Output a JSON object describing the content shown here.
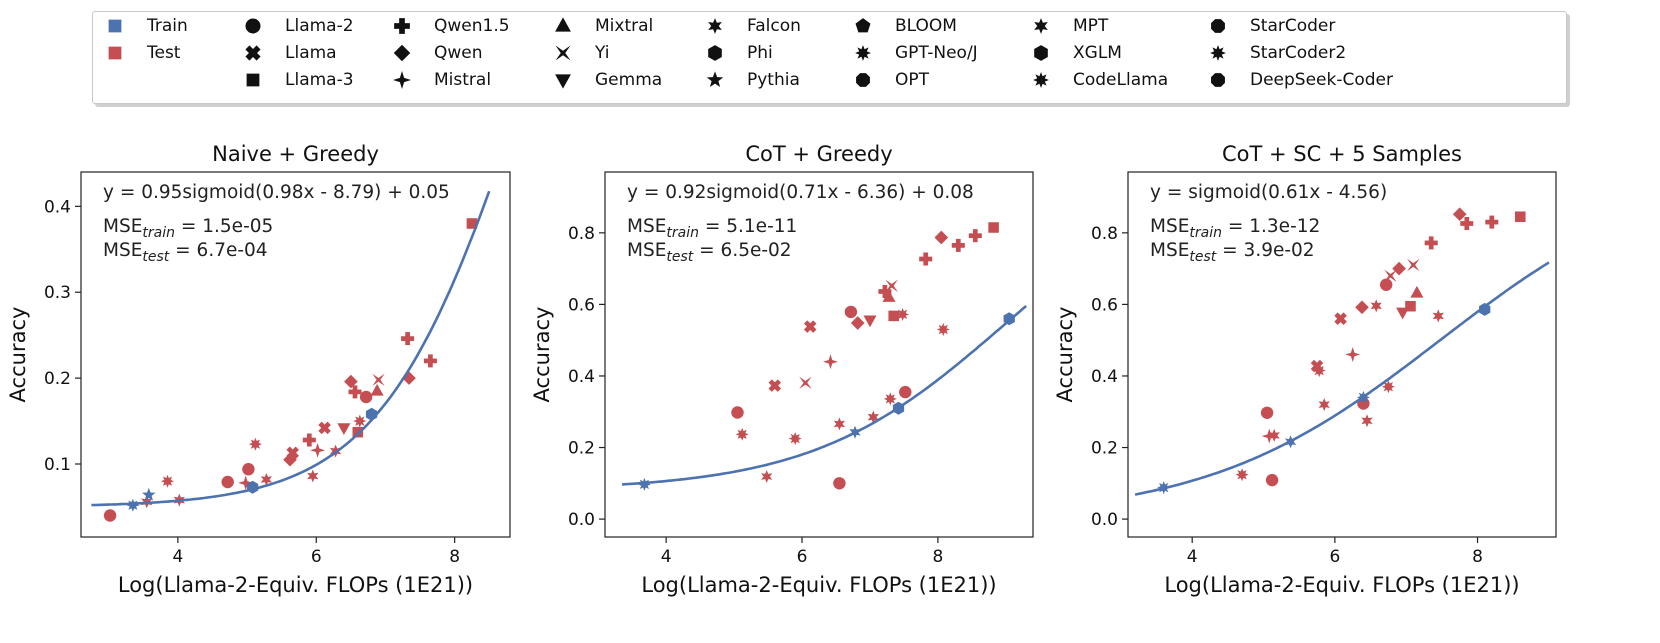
{
  "legend": {
    "columns": [
      [
        {
          "label": "Train",
          "marker": "square",
          "color": "#4c72b0"
        },
        {
          "label": "Test",
          "marker": "square",
          "color": "#c44e52"
        }
      ],
      [
        {
          "label": "Llama-2",
          "marker": "circle"
        },
        {
          "label": "Llama",
          "marker": "x"
        },
        {
          "label": "Llama-3",
          "marker": "square"
        }
      ],
      [
        {
          "label": "Qwen1.5",
          "marker": "plus"
        },
        {
          "label": "Qwen",
          "marker": "diamond"
        },
        {
          "label": "Mistral",
          "marker": "star4"
        }
      ],
      [
        {
          "label": "Mixtral",
          "marker": "triangle-up"
        },
        {
          "label": "Yi",
          "marker": "bowtie"
        },
        {
          "label": "Gemma",
          "marker": "triangle-down"
        }
      ],
      [
        {
          "label": "Falcon",
          "marker": "star6"
        },
        {
          "label": "Phi",
          "marker": "hexagon"
        },
        {
          "label": "Pythia",
          "marker": "star5"
        }
      ],
      [
        {
          "label": "BLOOM",
          "marker": "pentagon"
        },
        {
          "label": "GPT-Neo/J",
          "marker": "star8"
        },
        {
          "label": "OPT",
          "marker": "octagon"
        }
      ],
      [
        {
          "label": "MPT",
          "marker": "star6"
        },
        {
          "label": "XGLM",
          "marker": "hexagon"
        },
        {
          "label": "CodeLlama",
          "marker": "star8"
        }
      ],
      [
        {
          "label": "StarCoder",
          "marker": "octagon"
        },
        {
          "label": "StarCoder2",
          "marker": "star8"
        },
        {
          "label": "DeepSeek-Coder",
          "marker": "octagon"
        }
      ]
    ]
  },
  "colors": {
    "train": "#4c72b0",
    "test": "#c44e52",
    "marker_default": "#111111"
  },
  "chart_data": [
    {
      "type": "scatter",
      "title": "Naive + Greedy",
      "xlabel": "Log(Llama-2-Equiv. FLOPs (1E21))",
      "ylabel": "Accuracy",
      "xlim": [
        2.6,
        8.8
      ],
      "ylim": [
        0.015,
        0.44
      ],
      "xticks": [
        4,
        6,
        8
      ],
      "yticks": [
        0.1,
        0.2,
        0.3,
        0.4
      ],
      "xtick_labels": [
        "4",
        "6",
        "8"
      ],
      "ytick_labels": [
        "0.1",
        "0.2",
        "0.3",
        "0.4"
      ],
      "equation": "y = 0.95sigmoid(0.98x - 8.79) + 0.05",
      "mse_train": {
        "prefix": "MSE",
        "sub": "train",
        "value": " = 1.5e-05"
      },
      "mse_test": {
        "prefix": "MSE",
        "sub": "test",
        "value": " = 6.7e-04"
      },
      "fit": {
        "a": 0.95,
        "k": 0.98,
        "b": -8.79,
        "c": 0.05,
        "x_range": [
          2.75,
          8.5
        ]
      },
      "train_points": [
        {
          "x": 3.35,
          "y": 0.052,
          "m": "star8"
        },
        {
          "x": 3.58,
          "y": 0.064,
          "m": "star5"
        },
        {
          "x": 5.08,
          "y": 0.073,
          "m": "hexagon"
        },
        {
          "x": 6.8,
          "y": 0.158,
          "m": "hexagon"
        }
      ],
      "test_points": [
        {
          "x": 3.02,
          "y": 0.04,
          "m": "circle"
        },
        {
          "x": 3.55,
          "y": 0.056,
          "m": "star6"
        },
        {
          "x": 3.85,
          "y": 0.08,
          "m": "star8"
        },
        {
          "x": 4.02,
          "y": 0.058,
          "m": "star6"
        },
        {
          "x": 4.72,
          "y": 0.079,
          "m": "circle"
        },
        {
          "x": 4.98,
          "y": 0.078,
          "m": "star4"
        },
        {
          "x": 5.02,
          "y": 0.094,
          "m": "circle"
        },
        {
          "x": 5.12,
          "y": 0.123,
          "m": "star8"
        },
        {
          "x": 5.28,
          "y": 0.082,
          "m": "star6"
        },
        {
          "x": 5.62,
          "y": 0.105,
          "m": "diamond"
        },
        {
          "x": 5.66,
          "y": 0.113,
          "m": "x"
        },
        {
          "x": 5.9,
          "y": 0.128,
          "m": "plus"
        },
        {
          "x": 5.95,
          "y": 0.086,
          "m": "star6"
        },
        {
          "x": 6.02,
          "y": 0.116,
          "m": "star4"
        },
        {
          "x": 6.12,
          "y": 0.142,
          "m": "x"
        },
        {
          "x": 6.28,
          "y": 0.115,
          "m": "star6"
        },
        {
          "x": 6.4,
          "y": 0.142,
          "m": "triangle-down"
        },
        {
          "x": 6.5,
          "y": 0.196,
          "m": "diamond"
        },
        {
          "x": 6.56,
          "y": 0.184,
          "m": "plus"
        },
        {
          "x": 6.6,
          "y": 0.137,
          "m": "square"
        },
        {
          "x": 6.63,
          "y": 0.15,
          "m": "star8"
        },
        {
          "x": 6.72,
          "y": 0.178,
          "m": "circle"
        },
        {
          "x": 6.88,
          "y": 0.185,
          "m": "triangle-up"
        },
        {
          "x": 6.9,
          "y": 0.198,
          "m": "bowtie"
        },
        {
          "x": 7.32,
          "y": 0.246,
          "m": "plus"
        },
        {
          "x": 7.34,
          "y": 0.2,
          "m": "diamond"
        },
        {
          "x": 7.65,
          "y": 0.22,
          "m": "plus"
        },
        {
          "x": 8.25,
          "y": 0.38,
          "m": "square"
        }
      ]
    },
    {
      "type": "scatter",
      "title": "CoT + Greedy",
      "xlabel": "Log(Llama-2-Equiv. FLOPs (1E21))",
      "ylabel": "Accuracy",
      "xlim": [
        3.1,
        9.4
      ],
      "ylim": [
        -0.05,
        0.97
      ],
      "xticks": [
        4,
        6,
        8
      ],
      "yticks": [
        0,
        0.2,
        0.4,
        0.6,
        0.8
      ],
      "xtick_labels": [
        "4",
        "6",
        "8"
      ],
      "ytick_labels": [
        "0.0",
        "0.2",
        "0.4",
        "0.6",
        "0.8"
      ],
      "equation": "y = 0.92sigmoid(0.71x - 6.36) + 0.08",
      "mse_train": {
        "prefix": "MSE",
        "sub": "train",
        "value": " = 5.1e-11"
      },
      "mse_test": {
        "prefix": "MSE",
        "sub": "test",
        "value": " = 6.5e-02"
      },
      "fit": {
        "a": 0.92,
        "k": 0.71,
        "b": -6.36,
        "c": 0.08,
        "x_range": [
          3.35,
          9.3
        ]
      },
      "train_points": [
        {
          "x": 3.68,
          "y": 0.097,
          "m": "star8"
        },
        {
          "x": 6.78,
          "y": 0.243,
          "m": "star6"
        },
        {
          "x": 7.42,
          "y": 0.31,
          "m": "hexagon"
        },
        {
          "x": 9.05,
          "y": 0.56,
          "m": "hexagon"
        }
      ],
      "test_points": [
        {
          "x": 5.05,
          "y": 0.298,
          "m": "circle"
        },
        {
          "x": 5.12,
          "y": 0.237,
          "m": "star8"
        },
        {
          "x": 5.48,
          "y": 0.119,
          "m": "star6"
        },
        {
          "x": 5.6,
          "y": 0.373,
          "m": "x"
        },
        {
          "x": 5.9,
          "y": 0.225,
          "m": "star8"
        },
        {
          "x": 6.05,
          "y": 0.381,
          "m": "bowtie"
        },
        {
          "x": 6.12,
          "y": 0.538,
          "m": "x"
        },
        {
          "x": 6.42,
          "y": 0.44,
          "m": "star4"
        },
        {
          "x": 6.55,
          "y": 0.266,
          "m": "star6"
        },
        {
          "x": 6.55,
          "y": 0.1,
          "m": "circle"
        },
        {
          "x": 6.72,
          "y": 0.579,
          "m": "circle"
        },
        {
          "x": 6.82,
          "y": 0.548,
          "m": "diamond"
        },
        {
          "x": 7.0,
          "y": 0.556,
          "m": "triangle-down"
        },
        {
          "x": 7.05,
          "y": 0.285,
          "m": "star6"
        },
        {
          "x": 7.22,
          "y": 0.636,
          "m": "plus"
        },
        {
          "x": 7.28,
          "y": 0.62,
          "m": "triangle-up"
        },
        {
          "x": 7.3,
          "y": 0.336,
          "m": "star8"
        },
        {
          "x": 7.32,
          "y": 0.652,
          "m": "bowtie"
        },
        {
          "x": 7.35,
          "y": 0.568,
          "m": "square"
        },
        {
          "x": 7.48,
          "y": 0.572,
          "m": "star8"
        },
        {
          "x": 7.52,
          "y": 0.355,
          "m": "circle"
        },
        {
          "x": 7.82,
          "y": 0.727,
          "m": "plus"
        },
        {
          "x": 8.05,
          "y": 0.787,
          "m": "diamond"
        },
        {
          "x": 8.08,
          "y": 0.53,
          "m": "star8"
        },
        {
          "x": 8.3,
          "y": 0.765,
          "m": "plus"
        },
        {
          "x": 8.55,
          "y": 0.792,
          "m": "plus"
        },
        {
          "x": 8.82,
          "y": 0.815,
          "m": "square"
        }
      ]
    },
    {
      "type": "scatter",
      "title": "CoT + SC + 5 Samples",
      "xlabel": "Log(Llama-2-Equiv. FLOPs (1E21))",
      "ylabel": "Accuracy",
      "xlim": [
        3.1,
        9.1
      ],
      "ylim": [
        -0.05,
        0.97
      ],
      "xticks": [
        4,
        6,
        8
      ],
      "yticks": [
        0,
        0.2,
        0.4,
        0.6,
        0.8
      ],
      "xtick_labels": [
        "4",
        "6",
        "8"
      ],
      "ytick_labels": [
        "0.0",
        "0.2",
        "0.4",
        "0.6",
        "0.8"
      ],
      "equation": "y = sigmoid(0.61x - 4.56)",
      "mse_train": {
        "prefix": "MSE",
        "sub": "train",
        "value": " = 1.3e-12"
      },
      "mse_test": {
        "prefix": "MSE",
        "sub": "test",
        "value": " = 3.9e-02"
      },
      "fit": {
        "a": 1.0,
        "k": 0.61,
        "b": -4.56,
        "c": 0.0,
        "x_range": [
          3.2,
          9.0
        ]
      },
      "train_points": [
        {
          "x": 3.6,
          "y": 0.088,
          "m": "star8"
        },
        {
          "x": 5.38,
          "y": 0.216,
          "m": "star6"
        },
        {
          "x": 6.4,
          "y": 0.34,
          "m": "star8"
        },
        {
          "x": 8.1,
          "y": 0.586,
          "m": "hexagon"
        }
      ],
      "test_points": [
        {
          "x": 4.7,
          "y": 0.124,
          "m": "star8"
        },
        {
          "x": 5.05,
          "y": 0.297,
          "m": "circle"
        },
        {
          "x": 5.08,
          "y": 0.232,
          "m": "star4"
        },
        {
          "x": 5.15,
          "y": 0.234,
          "m": "star6"
        },
        {
          "x": 5.12,
          "y": 0.109,
          "m": "circle"
        },
        {
          "x": 5.75,
          "y": 0.428,
          "m": "x"
        },
        {
          "x": 5.78,
          "y": 0.415,
          "m": "star8"
        },
        {
          "x": 5.85,
          "y": 0.32,
          "m": "star6"
        },
        {
          "x": 6.08,
          "y": 0.56,
          "m": "x"
        },
        {
          "x": 6.25,
          "y": 0.46,
          "m": "star4"
        },
        {
          "x": 6.38,
          "y": 0.592,
          "m": "diamond"
        },
        {
          "x": 6.4,
          "y": 0.323,
          "m": "circle"
        },
        {
          "x": 6.45,
          "y": 0.275,
          "m": "star6"
        },
        {
          "x": 6.58,
          "y": 0.596,
          "m": "star6"
        },
        {
          "x": 6.72,
          "y": 0.655,
          "m": "circle"
        },
        {
          "x": 6.75,
          "y": 0.37,
          "m": "star8"
        },
        {
          "x": 6.78,
          "y": 0.68,
          "m": "bowtie"
        },
        {
          "x": 6.9,
          "y": 0.7,
          "m": "diamond"
        },
        {
          "x": 6.95,
          "y": 0.578,
          "m": "triangle-down"
        },
        {
          "x": 7.1,
          "y": 0.71,
          "m": "bowtie"
        },
        {
          "x": 7.06,
          "y": 0.595,
          "m": "square"
        },
        {
          "x": 7.15,
          "y": 0.632,
          "m": "triangle-up"
        },
        {
          "x": 7.45,
          "y": 0.568,
          "m": "star6"
        },
        {
          "x": 7.35,
          "y": 0.772,
          "m": "plus"
        },
        {
          "x": 7.75,
          "y": 0.852,
          "m": "diamond"
        },
        {
          "x": 7.85,
          "y": 0.826,
          "m": "plus"
        },
        {
          "x": 8.2,
          "y": 0.83,
          "m": "plus"
        },
        {
          "x": 8.6,
          "y": 0.845,
          "m": "square"
        }
      ]
    }
  ]
}
